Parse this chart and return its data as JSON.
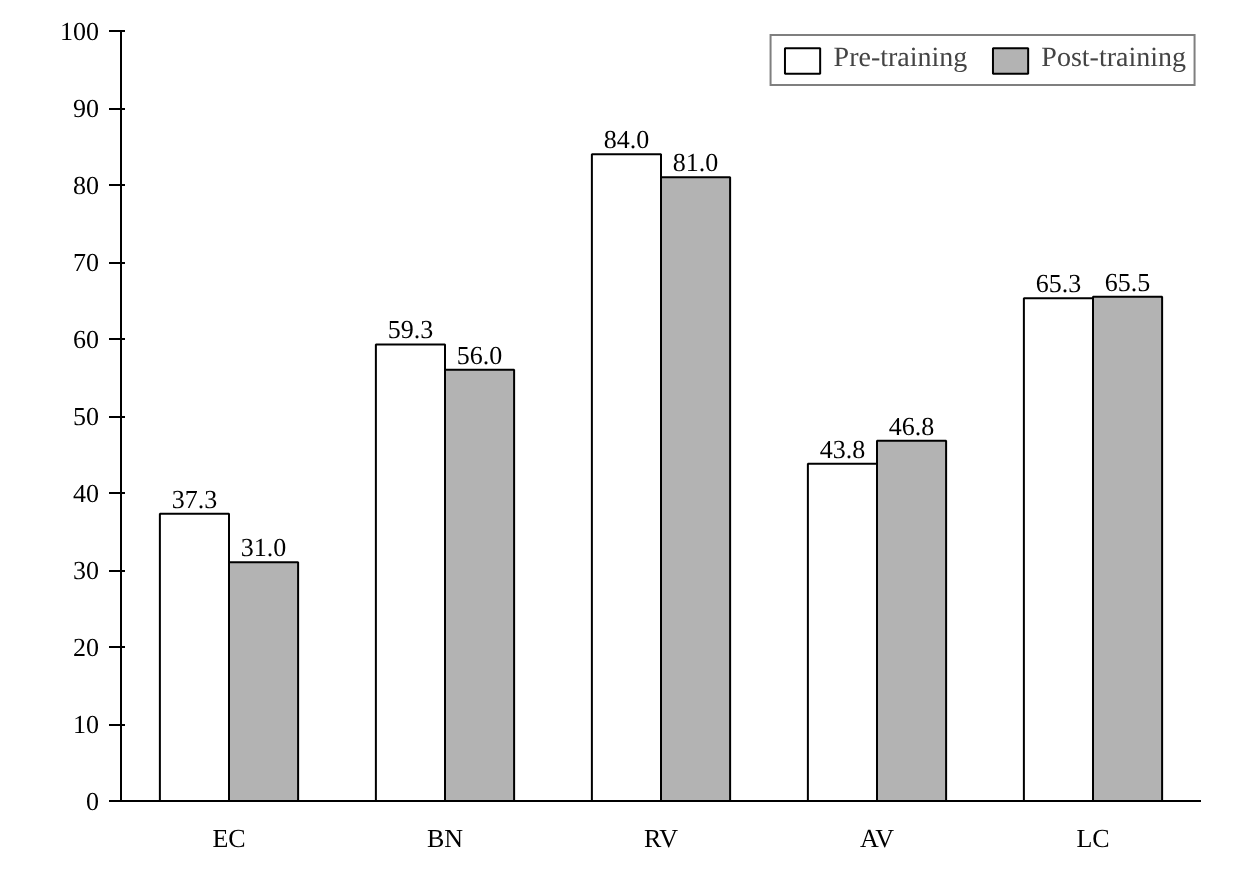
{
  "chart_data": {
    "type": "bar",
    "categories": [
      "EC",
      "BN",
      "RV",
      "AV",
      "LC"
    ],
    "series": [
      {
        "name": "Pre-training",
        "color": "#ffffff",
        "values": [
          37.3,
          59.3,
          84.0,
          43.8,
          65.3
        ],
        "value_labels": [
          "37.3",
          "59.3",
          "84.0",
          "43.8",
          "65.3"
        ]
      },
      {
        "name": "Post-training",
        "color": "#b3b3b3",
        "values": [
          31.0,
          56.0,
          81.0,
          46.8,
          65.5
        ],
        "value_labels": [
          "31.0",
          "56.0",
          "81.0",
          "46.8",
          "65.5"
        ]
      }
    ],
    "ylim": [
      0,
      100
    ],
    "yticks": [
      0,
      10,
      20,
      30,
      40,
      50,
      60,
      70,
      80,
      90,
      100
    ],
    "grid": false,
    "legend": "top right"
  }
}
